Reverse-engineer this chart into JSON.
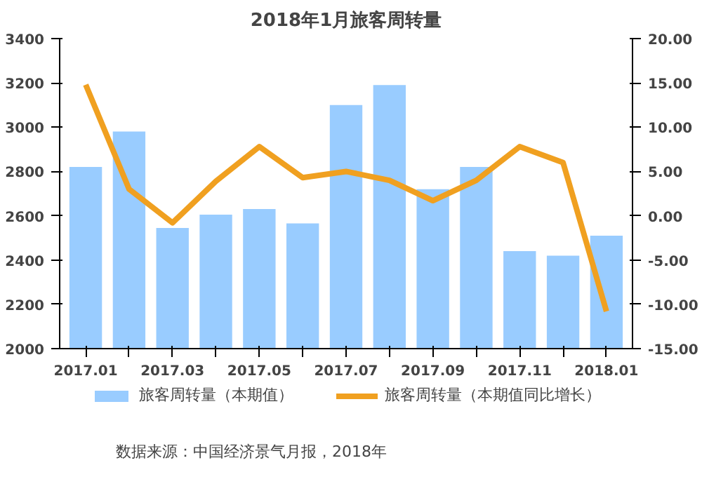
{
  "chart_data": {
    "type": "bar",
    "title": "2018年1月旅客周转量",
    "categories": [
      "2017.01",
      null,
      "2017.03",
      null,
      "2017.05",
      null,
      "2017.07",
      null,
      "2017.09",
      null,
      "2017.11",
      null,
      "2018.01"
    ],
    "series": [
      {
        "name": "旅客周转量（本期值）",
        "color": "#99ccff",
        "values": [
          2820,
          2980,
          2545,
          2605,
          2630,
          2565,
          3100,
          3190,
          2720,
          2820,
          2440,
          2420,
          2510
        ]
      },
      {
        "name": "旅客周转量（本期值同比增长）",
        "type": "line",
        "axis": "y2",
        "color": "#f0a020",
        "values": [
          14.8,
          3.0,
          -0.8,
          3.9,
          7.8,
          4.3,
          5.0,
          4.0,
          1.7,
          4.0,
          7.8,
          6.0,
          -10.8
        ]
      }
    ],
    "ylim": [
      2000,
      3400
    ],
    "yticks": [
      2000,
      2200,
      2400,
      2600,
      2800,
      3000,
      3200,
      3400
    ],
    "y2lim": [
      -15,
      20
    ],
    "y2ticks": [
      {
        "value": -15,
        "label": "-15.00"
      },
      {
        "value": -10,
        "label": "-10.00"
      },
      {
        "value": -5,
        "label": "-5.00"
      },
      {
        "value": 0,
        "label": "0.00"
      },
      {
        "value": 5,
        "label": "5.00"
      },
      {
        "value": 10,
        "label": "10.00"
      },
      {
        "value": 15,
        "label": "15.00"
      },
      {
        "value": 20,
        "label": "20.00"
      }
    ],
    "legend": "bottom",
    "marker": "none",
    "line_style": "solid",
    "annotations": [
      "数据来源：中国经济景气月报，2018年"
    ]
  }
}
